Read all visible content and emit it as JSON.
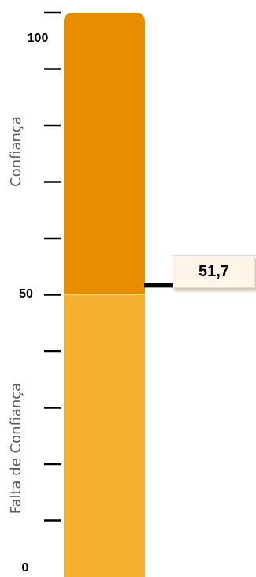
{
  "chart_data": {
    "type": "gauge",
    "ylim": [
      0,
      100
    ],
    "tick_labels": [
      "100",
      "50",
      "0"
    ],
    "zones": [
      {
        "label": "Confiança",
        "from": 50,
        "to": 100,
        "color": "#e88c00"
      },
      {
        "label": "Falta de Confiança",
        "from": 0,
        "to": 50,
        "color": "#f6b030"
      }
    ],
    "value": 51.7,
    "value_label": "51,7"
  }
}
